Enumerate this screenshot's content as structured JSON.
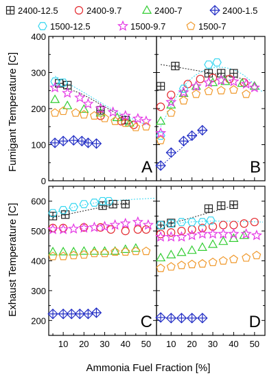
{
  "legend": [
    {
      "name": "2400-12.5",
      "marker": "square-plus",
      "color": "#222222"
    },
    {
      "name": "2400-9.7",
      "marker": "circle",
      "color": "#e3262b"
    },
    {
      "name": "2400-7",
      "marker": "triangle",
      "color": "#32cd32"
    },
    {
      "name": "2400-1.5",
      "marker": "diamond-plus",
      "color": "#1f2bc4"
    },
    {
      "name": "1500-12.5",
      "marker": "hexagon",
      "color": "#33d6f0"
    },
    {
      "name": "1500-9.7",
      "marker": "star",
      "color": "#e434e4"
    },
    {
      "name": "1500-7",
      "marker": "pentagon",
      "color": "#f0982a"
    }
  ],
  "chart_data": [
    {
      "type": "scatter",
      "panel": "A",
      "ylabel": "Fumigant Temperature [C]",
      "xlabel": "",
      "xlim": [
        3,
        55
      ],
      "ylim": [
        0,
        400
      ],
      "yticks": [
        0,
        100,
        200,
        300,
        400
      ],
      "xticks": [
        10,
        20,
        30,
        40,
        50
      ],
      "series": [
        {
          "name": "2400-12.5",
          "x": [
            8,
            12,
            28,
            40
          ],
          "y": [
            270,
            265,
            195,
            168
          ],
          "fit": [
            [
              6,
              265
            ],
            [
              18,
              245
            ],
            [
              30,
              205
            ],
            [
              44,
              160
            ]
          ]
        },
        {
          "name": "2400-9.7",
          "x": [
            28,
            38,
            44
          ],
          "y": [
            180,
            165,
            155
          ]
        },
        {
          "name": "2400-7",
          "x": [
            6,
            12,
            20,
            28,
            36,
            42
          ],
          "y": [
            225,
            208,
            198,
            188,
            175,
            160
          ]
        },
        {
          "name": "2400-1.5",
          "x": [
            6,
            10,
            15,
            19,
            22,
            26
          ],
          "y": [
            105,
            110,
            112,
            110,
            105,
            103
          ]
        },
        {
          "name": "1500-12.5",
          "x": [
            6,
            10
          ],
          "y": [
            275,
            272
          ],
          "fit": [
            [
              6,
              290
            ],
            [
              20,
              245
            ],
            [
              34,
              195
            ],
            [
              50,
              155
            ]
          ]
        },
        {
          "name": "1500-9.7",
          "x": [
            6,
            12,
            18,
            22,
            28,
            34,
            40,
            46,
            50
          ],
          "y": [
            258,
            243,
            230,
            213,
            200,
            190,
            180,
            172,
            165
          ]
        },
        {
          "name": "1500-7",
          "x": [
            6,
            10,
            16,
            20,
            25,
            30,
            35,
            40,
            45,
            50
          ],
          "y": [
            188,
            193,
            188,
            183,
            180,
            173,
            165,
            160,
            148,
            150
          ]
        }
      ]
    },
    {
      "type": "scatter",
      "panel": "B",
      "xlabel": "",
      "ylabel": "",
      "xlim": [
        3,
        55
      ],
      "ylim": [
        0,
        400
      ],
      "yticks": [
        0,
        100,
        200,
        300,
        400
      ],
      "xticks": [
        10,
        20,
        30,
        40,
        50
      ],
      "series": [
        {
          "name": "2400-12.5",
          "x": [
            5,
            12,
            28,
            34,
            40
          ],
          "y": [
            262,
            318,
            298,
            298,
            298
          ],
          "fit": [
            [
              5,
              322
            ],
            [
              20,
              308
            ],
            [
              35,
              292
            ],
            [
              45,
              282
            ]
          ]
        },
        {
          "name": "2400-9.7",
          "x": [
            5,
            10,
            18,
            24,
            30,
            38,
            45
          ],
          "y": [
            205,
            238,
            268,
            282,
            285,
            282,
            272
          ]
        },
        {
          "name": "2400-7",
          "x": [
            5,
            10,
            16,
            22,
            30,
            36,
            44,
            50
          ],
          "y": [
            165,
            210,
            242,
            262,
            272,
            275,
            270,
            262
          ]
        },
        {
          "name": "2400-1.5",
          "x": [
            5,
            10,
            16,
            20,
            25
          ],
          "y": [
            42,
            78,
            110,
            125,
            140
          ],
          "fit": [
            [
              5,
              40
            ],
            [
              25,
              142
            ]
          ]
        },
        {
          "name": "1500-12.5",
          "x": [
            5,
            16,
            28,
            32
          ],
          "y": [
            125,
            255,
            322,
            328
          ],
          "fit": [
            [
              5,
              150
            ],
            [
              15,
              265
            ],
            [
              28,
              318
            ],
            [
              42,
              310
            ],
            [
              54,
              245
            ]
          ]
        },
        {
          "name": "1500-9.7",
          "x": [
            5,
            10,
            16,
            22,
            28,
            34,
            40,
            46,
            50
          ],
          "y": [
            132,
            218,
            245,
            262,
            272,
            278,
            275,
            268,
            258
          ]
        },
        {
          "name": "1500-7",
          "x": [
            5,
            10,
            16,
            22,
            28,
            34,
            40,
            46
          ],
          "y": [
            112,
            188,
            222,
            240,
            248,
            250,
            252,
            240
          ]
        }
      ]
    },
    {
      "type": "scatter",
      "panel": "C",
      "ylabel": "Exhaust Temperature [C]",
      "xlabel": "",
      "xlim": [
        3,
        55
      ],
      "ylim": [
        150,
        650
      ],
      "yticks": [
        200,
        300,
        400,
        500,
        600
      ],
      "xticks": [
        10,
        20,
        30,
        40,
        50
      ],
      "series": [
        {
          "name": "2400-12.5",
          "x": [
            5,
            11,
            29,
            34,
            40
          ],
          "y": [
            550,
            555,
            585,
            590,
            590
          ],
          "fit": [
            [
              5,
              545
            ],
            [
              20,
              568
            ],
            [
              35,
              588
            ],
            [
              42,
              595
            ]
          ]
        },
        {
          "name": "2400-9.7",
          "x": [
            5,
            10,
            20,
            28,
            33,
            40,
            46,
            50
          ],
          "y": [
            510,
            510,
            512,
            512,
            505,
            500,
            505,
            505
          ]
        },
        {
          "name": "2400-7",
          "x": [
            5,
            10,
            15,
            20,
            25,
            30,
            35,
            40,
            45
          ],
          "y": [
            430,
            430,
            430,
            432,
            432,
            432,
            432,
            438,
            442
          ]
        },
        {
          "name": "2400-1.5",
          "x": [
            5,
            10,
            14,
            18,
            22,
            26
          ],
          "y": [
            222,
            222,
            222,
            222,
            222,
            226
          ]
        },
        {
          "name": "1500-12.5",
          "x": [
            5,
            10,
            15,
            20,
            25,
            29,
            32
          ],
          "y": [
            560,
            570,
            580,
            590,
            595,
            600,
            600
          ],
          "fit": [
            [
              5,
              560
            ],
            [
              20,
              590
            ],
            [
              35,
              603
            ],
            [
              54,
              610
            ]
          ]
        },
        {
          "name": "1500-9.7",
          "x": [
            5,
            10,
            15,
            20,
            25,
            30,
            35,
            40,
            46,
            51
          ],
          "y": [
            505,
            505,
            507,
            510,
            512,
            515,
            520,
            525,
            530,
            520
          ]
        },
        {
          "name": "1500-7",
          "x": [
            5,
            10,
            15,
            20,
            25,
            30,
            35,
            40,
            45,
            50
          ],
          "y": [
            415,
            415,
            418,
            420,
            425,
            425,
            430,
            430,
            432,
            432
          ]
        }
      ]
    },
    {
      "type": "scatter",
      "panel": "D",
      "xlabel": "",
      "ylabel": "",
      "xlim": [
        3,
        55
      ],
      "ylim": [
        150,
        650
      ],
      "yticks": [
        200,
        300,
        400,
        500,
        600
      ],
      "xticks": [
        10,
        20,
        30,
        40,
        50
      ],
      "series": [
        {
          "name": "2400-12.5",
          "x": [
            5,
            10,
            28,
            34,
            40
          ],
          "y": [
            520,
            527,
            575,
            585,
            588
          ],
          "fit": [
            [
              5,
              515
            ],
            [
              20,
              545
            ],
            [
              35,
              575
            ],
            [
              42,
              590
            ]
          ]
        },
        {
          "name": "2400-9.7",
          "x": [
            5,
            10,
            15,
            20,
            25,
            30,
            35,
            40,
            45,
            50
          ],
          "y": [
            490,
            495,
            500,
            505,
            510,
            515,
            520,
            520,
            525,
            530
          ]
        },
        {
          "name": "2400-7",
          "x": [
            5,
            10,
            15,
            20,
            25,
            30,
            35,
            40,
            45
          ],
          "y": [
            410,
            420,
            428,
            435,
            445,
            455,
            465,
            475,
            485
          ]
        },
        {
          "name": "2400-1.5",
          "x": [
            5,
            10,
            15,
            20,
            25
          ],
          "y": [
            210,
            208,
            208,
            208,
            208
          ]
        },
        {
          "name": "1500-12.5",
          "x": [
            5,
            10,
            15,
            20,
            25,
            29
          ],
          "y": [
            520,
            525,
            530,
            530,
            530,
            535
          ],
          "fit": [
            [
              5,
              520
            ],
            [
              25,
              535
            ],
            [
              54,
              530
            ]
          ]
        },
        {
          "name": "1500-9.7",
          "x": [
            5,
            10,
            15,
            20,
            25,
            30,
            35,
            40,
            46,
            51
          ],
          "y": [
            480,
            480,
            480,
            485,
            490,
            490,
            490,
            490,
            490,
            485
          ]
        },
        {
          "name": "1500-7",
          "x": [
            5,
            10,
            15,
            20,
            25,
            30,
            35,
            40,
            46,
            51
          ],
          "y": [
            375,
            380,
            385,
            388,
            390,
            395,
            400,
            405,
            410,
            418
          ]
        }
      ]
    }
  ],
  "xlabel_shared": "Ammonia Fuel Fraction [%]"
}
